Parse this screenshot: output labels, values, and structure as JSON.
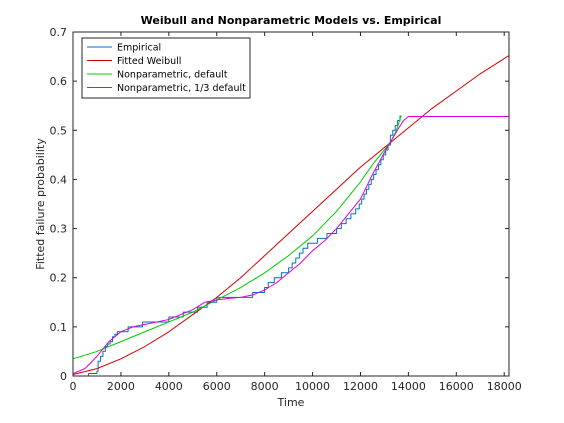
{
  "chart_data": {
    "type": "line",
    "title": "Weibull and Nonparametric Models vs. Empirical",
    "xlabel": "Time",
    "ylabel": "Fitted failure probability",
    "xlim": [
      0,
      18200
    ],
    "ylim": [
      0,
      0.7
    ],
    "xticks": [
      0,
      2000,
      4000,
      6000,
      8000,
      10000,
      12000,
      14000,
      16000,
      18000
    ],
    "yticks": [
      0,
      0.1,
      0.2,
      0.3,
      0.4,
      0.5,
      0.6,
      0.7
    ],
    "xtick_labels": [
      "0",
      "2000",
      "4000",
      "6000",
      "8000",
      "10000",
      "12000",
      "14000",
      "16000",
      "18000"
    ],
    "ytick_labels": [
      "0",
      "0.1",
      "0.2",
      "0.3",
      "0.4",
      "0.5",
      "0.6",
      "0.7"
    ],
    "grid": false,
    "legend_position": "top-left",
    "series": [
      {
        "name": "Empirical",
        "style": "step",
        "color": "#0072bd",
        "x": [
          0,
          300,
          650,
          1000,
          1050,
          1150,
          1250,
          1350,
          1450,
          1550,
          1650,
          1750,
          1850,
          1950,
          2100,
          2300,
          2500,
          2700,
          2900,
          3100,
          3400,
          3700,
          4000,
          4300,
          4600,
          4900,
          5200,
          5600,
          6000,
          6800,
          7500,
          8000,
          8150,
          8400,
          8700,
          9000,
          9150,
          9300,
          9450,
          9600,
          9800,
          10000,
          10200,
          10400,
          10600,
          10800,
          11000,
          11200,
          11400,
          11600,
          11800,
          11950,
          12050,
          12150,
          12250,
          12350,
          12450,
          12550,
          12650,
          12750,
          12850,
          12950,
          13050,
          13150,
          13250,
          13350,
          13450,
          13550,
          13650
        ],
        "y": [
          0,
          0,
          0.005,
          0.01,
          0.03,
          0.04,
          0.05,
          0.06,
          0.065,
          0.07,
          0.08,
          0.085,
          0.09,
          0.09,
          0.09,
          0.1,
          0.1,
          0.1,
          0.11,
          0.11,
          0.11,
          0.11,
          0.12,
          0.12,
          0.13,
          0.13,
          0.14,
          0.15,
          0.16,
          0.16,
          0.17,
          0.18,
          0.19,
          0.2,
          0.21,
          0.22,
          0.23,
          0.24,
          0.25,
          0.26,
          0.27,
          0.27,
          0.28,
          0.28,
          0.29,
          0.29,
          0.3,
          0.31,
          0.32,
          0.33,
          0.34,
          0.35,
          0.36,
          0.37,
          0.38,
          0.39,
          0.4,
          0.41,
          0.42,
          0.43,
          0.44,
          0.45,
          0.46,
          0.47,
          0.49,
          0.5,
          0.51,
          0.52,
          0.53
        ]
      },
      {
        "name": "Fitted Weibull",
        "style": "line",
        "color": "#d40000",
        "x": [
          0,
          1000,
          2000,
          3000,
          4000,
          5000,
          6000,
          7000,
          8000,
          9000,
          10000,
          11000,
          12000,
          13000,
          14000,
          15000,
          16000,
          17000,
          18200
        ],
        "y": [
          0.003,
          0.015,
          0.035,
          0.06,
          0.09,
          0.125,
          0.16,
          0.2,
          0.245,
          0.29,
          0.335,
          0.38,
          0.425,
          0.465,
          0.505,
          0.545,
          0.58,
          0.615,
          0.652
        ]
      },
      {
        "name": "Nonparametric, default",
        "style": "line",
        "color": "#00cc00",
        "x": [
          0,
          1000,
          2000,
          3000,
          4000,
          5000,
          6000,
          7000,
          8000,
          9000,
          10000,
          11000,
          12000,
          12500,
          13000,
          13300,
          13500,
          13700
        ],
        "y": [
          0.035,
          0.05,
          0.07,
          0.09,
          0.11,
          0.13,
          0.155,
          0.18,
          0.21,
          0.245,
          0.285,
          0.335,
          0.395,
          0.43,
          0.46,
          0.48,
          0.5,
          0.53
        ]
      },
      {
        "name": "Nonparametric, 1/3 default",
        "style": "line",
        "color": "#dd00dd",
        "x": [
          0,
          500,
          1000,
          1500,
          2000,
          2500,
          3000,
          3500,
          4000,
          4500,
          5000,
          5500,
          6000,
          6500,
          7000,
          7500,
          8000,
          8500,
          9000,
          9500,
          10000,
          10500,
          11000,
          11500,
          12000,
          12500,
          13000,
          13300,
          13600,
          13800,
          14000,
          14500,
          18200
        ],
        "y": [
          0.005,
          0.015,
          0.04,
          0.07,
          0.09,
          0.1,
          0.105,
          0.11,
          0.115,
          0.125,
          0.135,
          0.15,
          0.155,
          0.158,
          0.16,
          0.165,
          0.175,
          0.19,
          0.21,
          0.23,
          0.255,
          0.275,
          0.3,
          0.33,
          0.36,
          0.41,
          0.455,
          0.48,
          0.505,
          0.52,
          0.528,
          0.528,
          0.528
        ]
      }
    ]
  }
}
